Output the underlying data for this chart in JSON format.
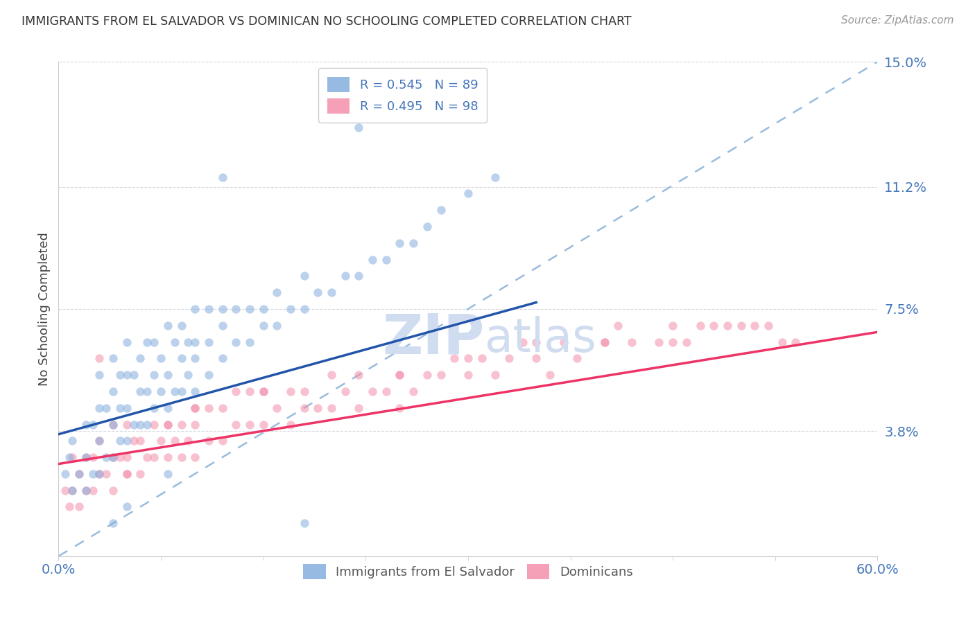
{
  "title": "IMMIGRANTS FROM EL SALVADOR VS DOMINICAN NO SCHOOLING COMPLETED CORRELATION CHART",
  "source": "Source: ZipAtlas.com",
  "ylabel": "No Schooling Completed",
  "xlim": [
    0.0,
    0.6
  ],
  "ylim": [
    0.0,
    0.15
  ],
  "yticks": [
    0.038,
    0.075,
    0.112,
    0.15
  ],
  "ytick_labels": [
    "3.8%",
    "7.5%",
    "11.2%",
    "15.0%"
  ],
  "legend_blue_r": "R = 0.545",
  "legend_blue_n": "N = 89",
  "legend_pink_r": "R = 0.495",
  "legend_pink_n": "N = 98",
  "blue_color": "#85AEDD",
  "pink_color": "#F48FAA",
  "blue_line_color": "#2255AA",
  "pink_line_color": "#EE3366",
  "ref_line_color": "#99BBDD",
  "tick_color": "#4477BB",
  "watermark_color": "#D0DCF0",
  "background_color": "#FFFFFF",
  "dot_size": 80,
  "dot_alpha": 0.55,
  "blue_scatter_x": [
    0.005,
    0.008,
    0.01,
    0.01,
    0.015,
    0.02,
    0.02,
    0.02,
    0.025,
    0.025,
    0.03,
    0.03,
    0.03,
    0.03,
    0.035,
    0.035,
    0.04,
    0.04,
    0.04,
    0.04,
    0.045,
    0.045,
    0.045,
    0.05,
    0.05,
    0.05,
    0.05,
    0.055,
    0.055,
    0.06,
    0.06,
    0.06,
    0.065,
    0.065,
    0.065,
    0.07,
    0.07,
    0.07,
    0.075,
    0.075,
    0.08,
    0.08,
    0.08,
    0.085,
    0.085,
    0.09,
    0.09,
    0.09,
    0.095,
    0.095,
    0.1,
    0.1,
    0.1,
    0.1,
    0.11,
    0.11,
    0.11,
    0.12,
    0.12,
    0.12,
    0.13,
    0.13,
    0.14,
    0.14,
    0.15,
    0.15,
    0.16,
    0.16,
    0.17,
    0.18,
    0.18,
    0.19,
    0.2,
    0.21,
    0.22,
    0.23,
    0.24,
    0.25,
    0.26,
    0.27,
    0.28,
    0.3,
    0.32,
    0.22,
    0.18,
    0.12,
    0.08,
    0.05,
    0.04
  ],
  "blue_scatter_y": [
    0.025,
    0.03,
    0.02,
    0.035,
    0.025,
    0.02,
    0.03,
    0.04,
    0.025,
    0.04,
    0.025,
    0.035,
    0.045,
    0.055,
    0.03,
    0.045,
    0.03,
    0.04,
    0.05,
    0.06,
    0.035,
    0.045,
    0.055,
    0.035,
    0.045,
    0.055,
    0.065,
    0.04,
    0.055,
    0.04,
    0.05,
    0.06,
    0.04,
    0.05,
    0.065,
    0.045,
    0.055,
    0.065,
    0.05,
    0.06,
    0.045,
    0.055,
    0.07,
    0.05,
    0.065,
    0.05,
    0.06,
    0.07,
    0.055,
    0.065,
    0.05,
    0.06,
    0.065,
    0.075,
    0.055,
    0.065,
    0.075,
    0.06,
    0.07,
    0.075,
    0.065,
    0.075,
    0.065,
    0.075,
    0.07,
    0.075,
    0.07,
    0.08,
    0.075,
    0.075,
    0.085,
    0.08,
    0.08,
    0.085,
    0.085,
    0.09,
    0.09,
    0.095,
    0.095,
    0.1,
    0.105,
    0.11,
    0.115,
    0.13,
    0.01,
    0.115,
    0.025,
    0.015,
    0.01
  ],
  "pink_scatter_x": [
    0.005,
    0.008,
    0.01,
    0.01,
    0.015,
    0.015,
    0.02,
    0.02,
    0.025,
    0.025,
    0.03,
    0.03,
    0.035,
    0.04,
    0.04,
    0.04,
    0.045,
    0.05,
    0.05,
    0.05,
    0.055,
    0.06,
    0.06,
    0.065,
    0.07,
    0.07,
    0.075,
    0.08,
    0.08,
    0.085,
    0.09,
    0.09,
    0.095,
    0.1,
    0.1,
    0.1,
    0.11,
    0.11,
    0.12,
    0.12,
    0.13,
    0.13,
    0.14,
    0.14,
    0.15,
    0.15,
    0.16,
    0.17,
    0.17,
    0.18,
    0.18,
    0.19,
    0.2,
    0.21,
    0.22,
    0.22,
    0.23,
    0.24,
    0.25,
    0.25,
    0.26,
    0.27,
    0.28,
    0.29,
    0.3,
    0.31,
    0.32,
    0.33,
    0.34,
    0.35,
    0.36,
    0.37,
    0.38,
    0.4,
    0.41,
    0.42,
    0.44,
    0.45,
    0.46,
    0.47,
    0.48,
    0.49,
    0.5,
    0.51,
    0.52,
    0.53,
    0.54,
    0.03,
    0.05,
    0.08,
    0.1,
    0.15,
    0.2,
    0.25,
    0.3,
    0.35,
    0.4,
    0.45
  ],
  "pink_scatter_y": [
    0.02,
    0.015,
    0.02,
    0.03,
    0.015,
    0.025,
    0.02,
    0.03,
    0.02,
    0.03,
    0.025,
    0.035,
    0.025,
    0.02,
    0.03,
    0.04,
    0.03,
    0.025,
    0.03,
    0.04,
    0.035,
    0.025,
    0.035,
    0.03,
    0.03,
    0.04,
    0.035,
    0.03,
    0.04,
    0.035,
    0.03,
    0.04,
    0.035,
    0.03,
    0.04,
    0.045,
    0.035,
    0.045,
    0.035,
    0.045,
    0.04,
    0.05,
    0.04,
    0.05,
    0.04,
    0.05,
    0.045,
    0.04,
    0.05,
    0.045,
    0.05,
    0.045,
    0.045,
    0.05,
    0.045,
    0.055,
    0.05,
    0.05,
    0.045,
    0.055,
    0.05,
    0.055,
    0.055,
    0.06,
    0.055,
    0.06,
    0.055,
    0.06,
    0.065,
    0.06,
    0.055,
    0.065,
    0.06,
    0.065,
    0.07,
    0.065,
    0.065,
    0.065,
    0.065,
    0.07,
    0.07,
    0.07,
    0.07,
    0.07,
    0.07,
    0.065,
    0.065,
    0.06,
    0.025,
    0.04,
    0.045,
    0.05,
    0.055,
    0.055,
    0.06,
    0.065,
    0.065,
    0.07
  ],
  "blue_line": {
    "x0": 0.0,
    "x1": 0.35,
    "y0": 0.037,
    "y1": 0.077
  },
  "pink_line": {
    "x0": 0.0,
    "x1": 0.6,
    "y0": 0.028,
    "y1": 0.068
  },
  "ref_line": {
    "x0": 0.0,
    "x1": 0.6,
    "y0": 0.0,
    "y1": 0.15
  }
}
